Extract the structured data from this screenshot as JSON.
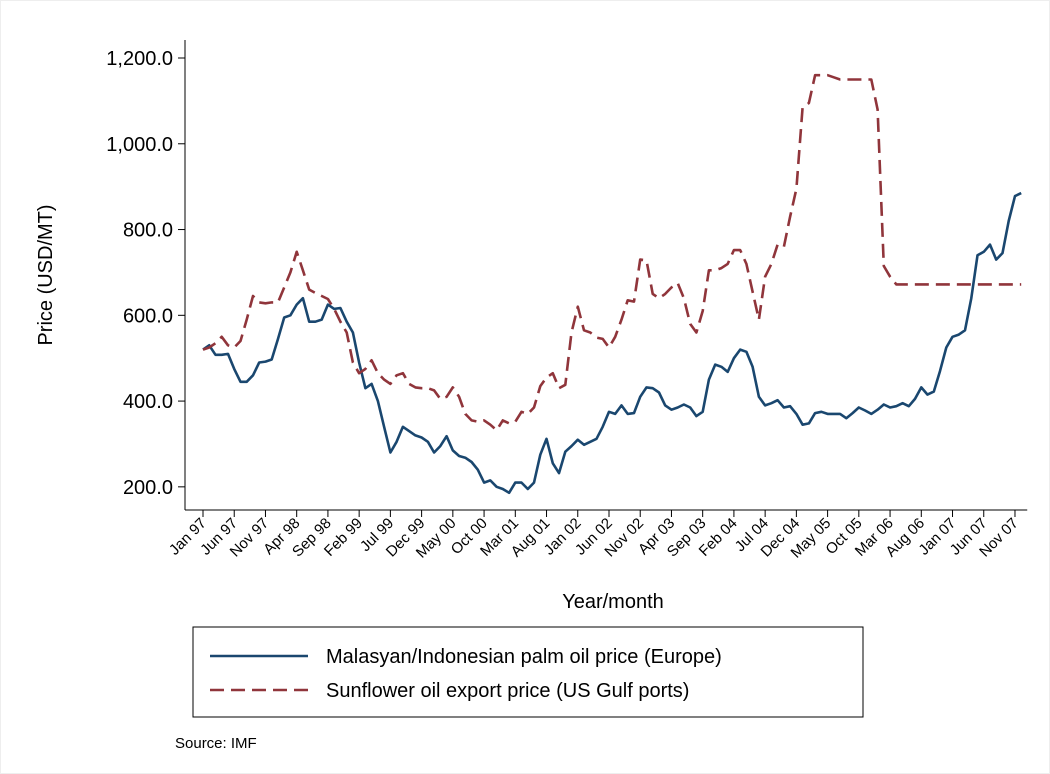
{
  "chart_data": {
    "type": "line",
    "x_label": "Year/month",
    "y_label": "Price (USD/MT)",
    "note": "Source: IMF",
    "categories": [
      "Jan 97",
      null,
      null,
      null,
      null,
      "Jun 97",
      null,
      null,
      null,
      null,
      "Nov 97",
      null,
      null,
      null,
      null,
      "Apr 98",
      null,
      null,
      null,
      null,
      "Sep 98",
      null,
      null,
      null,
      null,
      "Feb 99",
      null,
      null,
      null,
      null,
      "Jul 99",
      null,
      null,
      null,
      null,
      "Dec 99",
      null,
      null,
      null,
      null,
      "May 00",
      null,
      null,
      null,
      null,
      "Oct 00",
      null,
      null,
      null,
      null,
      "Mar 01",
      null,
      null,
      null,
      null,
      "Aug 01",
      null,
      null,
      null,
      null,
      "Jan 02",
      null,
      null,
      null,
      null,
      "Jun 02",
      null,
      null,
      null,
      null,
      "Nov 02",
      null,
      null,
      null,
      null,
      "Apr 03",
      null,
      null,
      null,
      null,
      "Sep 03",
      null,
      null,
      null,
      null,
      "Feb 04",
      null,
      null,
      null,
      null,
      "Jul 04",
      null,
      null,
      null,
      null,
      "Dec 04",
      null,
      null,
      null,
      null,
      "May 05",
      null,
      null,
      null,
      null,
      "Oct 05",
      null,
      null,
      null,
      null,
      "Mar 06",
      null,
      null,
      null,
      null,
      "Aug 06",
      null,
      null,
      null,
      null,
      "Jan 07",
      null,
      null,
      null,
      null,
      "Jun 07",
      null,
      null,
      null,
      null,
      "Nov 07",
      null
    ],
    "series": [
      {
        "name": "Malasyan/Indonesian palm oil price (Europe)",
        "color": "#1a476f",
        "dash": false,
        "values": [
          520,
          530,
          508,
          508,
          510,
          475,
          445,
          445,
          460,
          490,
          492,
          497,
          545,
          595,
          600,
          625,
          640,
          585,
          585,
          590,
          625,
          615,
          617,
          585,
          560,
          490,
          430,
          440,
          400,
          340,
          280,
          305,
          340,
          330,
          320,
          315,
          305,
          280,
          295,
          318,
          285,
          272,
          268,
          258,
          240,
          210,
          215,
          200,
          195,
          186,
          210,
          210,
          195,
          210,
          275,
          312,
          255,
          232,
          282,
          295,
          310,
          298,
          305,
          312,
          340,
          375,
          370,
          390,
          370,
          372,
          410,
          432,
          430,
          420,
          390,
          380,
          385,
          392,
          385,
          365,
          375,
          450,
          485,
          480,
          468,
          500,
          520,
          515,
          480,
          410,
          390,
          395,
          402,
          385,
          388,
          370,
          345,
          348,
          372,
          375,
          370,
          370,
          370,
          360,
          372,
          385,
          378,
          370,
          380,
          392,
          385,
          388,
          395,
          388,
          405,
          432,
          415,
          422,
          470,
          525,
          550,
          555,
          565,
          640,
          740,
          748,
          765,
          730,
          745,
          820,
          878,
          885
        ]
      },
      {
        "name": "Sunflower oil export price (US Gulf ports)",
        "color": "#90353b",
        "dash": true,
        "values": [
          520,
          525,
          535,
          550,
          530,
          525,
          540,
          590,
          645,
          630,
          628,
          630,
          630,
          665,
          700,
          748,
          705,
          660,
          652,
          645,
          638,
          615,
          585,
          560,
          490,
          465,
          475,
          495,
          465,
          450,
          440,
          460,
          465,
          440,
          432,
          430,
          430,
          425,
          405,
          410,
          432,
          410,
          370,
          355,
          352,
          355,
          345,
          332,
          355,
          348,
          352,
          375,
          370,
          385,
          435,
          455,
          465,
          430,
          438,
          560,
          620,
          565,
          560,
          548,
          545,
          525,
          550,
          590,
          635,
          632,
          730,
          728,
          650,
          640,
          650,
          665,
          675,
          640,
          580,
          560,
          610,
          705,
          705,
          710,
          720,
          752,
          752,
          720,
          655,
          590,
          690,
          720,
          765,
          760,
          830,
          895,
          1085,
          1095,
          1160,
          1160,
          1160,
          1155,
          1150,
          1150,
          1150,
          1150,
          1150,
          1150,
          1080,
          715,
          690,
          672,
          672,
          672,
          672,
          672,
          672,
          672,
          672,
          672,
          672,
          672,
          672,
          672,
          672,
          672,
          672,
          672,
          672,
          672,
          672,
          672
        ]
      }
    ],
    "ylim": [
      146,
      1242
    ],
    "yticks": [
      {
        "value": 200,
        "label": "200.0"
      },
      {
        "value": 400,
        "label": "400.0"
      },
      {
        "value": 600,
        "label": "600.0"
      },
      {
        "value": 800,
        "label": "800.0"
      },
      {
        "value": 1000,
        "label": "1,000.0"
      },
      {
        "value": 1200,
        "label": "1,200.0"
      }
    ],
    "grid": false,
    "legend": "bottom"
  }
}
